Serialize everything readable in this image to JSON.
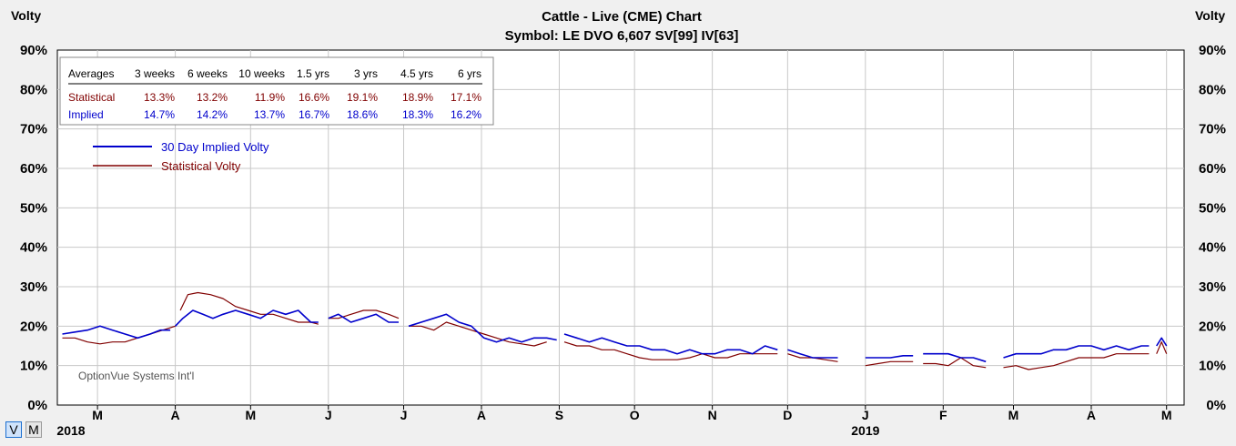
{
  "title": "Cattle - Live (CME) Chart",
  "subtitle": "Symbol: LE  DVO 6,607  SV[99]  IV[63]",
  "left_axis_title": "Volty",
  "right_axis_title": "Volty",
  "watermark": "OptionVue Systems Int'l",
  "buttons": {
    "v": "V",
    "m": "M"
  },
  "colors": {
    "implied": "#0000cc",
    "statistical": "#800000",
    "grid": "#c8c8c8",
    "plot_bg": "#ffffff"
  },
  "summary_table": {
    "headers": [
      "Averages",
      "3 weeks",
      "6 weeks",
      "10 weeks",
      "1.5 yrs",
      "3 yrs",
      "4.5 yrs",
      "6 yrs"
    ],
    "rows": [
      {
        "label": "Statistical",
        "values": [
          "13.3%",
          "13.2%",
          "11.9%",
          "16.6%",
          "19.1%",
          "18.9%",
          "17.1%"
        ]
      },
      {
        "label": "Implied",
        "values": [
          "14.7%",
          "14.2%",
          "13.7%",
          "16.7%",
          "18.6%",
          "18.3%",
          "16.2%"
        ]
      }
    ]
  },
  "chart_data": {
    "type": "line",
    "title": "Cattle - Live (CME) Chart",
    "subtitle": "Symbol: LE  DVO 6,607  SV[99]  IV[63]",
    "ylabel": "Volty",
    "ylim": [
      0,
      90
    ],
    "yticks": [
      "0%",
      "10%",
      "20%",
      "30%",
      "40%",
      "50%",
      "60%",
      "70%",
      "80%",
      "90%"
    ],
    "xlim": [
      "2018-02-13",
      "2019-05-08"
    ],
    "xticks": [
      {
        "label": "M",
        "date": "2018-03-01"
      },
      {
        "label": "A",
        "date": "2018-04-01"
      },
      {
        "label": "M",
        "date": "2018-05-01"
      },
      {
        "label": "J",
        "date": "2018-06-01"
      },
      {
        "label": "J",
        "date": "2018-07-01"
      },
      {
        "label": "A",
        "date": "2018-08-01"
      },
      {
        "label": "S",
        "date": "2018-09-01"
      },
      {
        "label": "O",
        "date": "2018-10-01"
      },
      {
        "label": "N",
        "date": "2018-11-01"
      },
      {
        "label": "D",
        "date": "2018-12-01"
      },
      {
        "label": "J",
        "date": "2019-01-01"
      },
      {
        "label": "F",
        "date": "2019-02-01"
      },
      {
        "label": "M",
        "date": "2019-03-01"
      },
      {
        "label": "A",
        "date": "2019-04-01"
      },
      {
        "label": "M",
        "date": "2019-05-01"
      }
    ],
    "year_labels": [
      {
        "label": "2018",
        "date": "2018-02-13"
      },
      {
        "label": "2019",
        "date": "2019-01-01"
      }
    ],
    "grid": true,
    "legend_position": "top-left",
    "series": [
      {
        "name": "30 Day Implied Volty",
        "color": "#0000cc",
        "segments": [
          [
            [
              "2018-02-15",
              18
            ],
            [
              "2018-02-20",
              18.5
            ],
            [
              "2018-02-25",
              19
            ],
            [
              "2018-03-02",
              20
            ],
            [
              "2018-03-07",
              19
            ],
            [
              "2018-03-12",
              18
            ],
            [
              "2018-03-17",
              17
            ],
            [
              "2018-03-22",
              18
            ],
            [
              "2018-03-26",
              19
            ],
            [
              "2018-03-30",
              19
            ]
          ],
          [
            [
              "2018-04-01",
              20
            ],
            [
              "2018-04-04",
              22
            ],
            [
              "2018-04-08",
              24
            ],
            [
              "2018-04-12",
              23
            ],
            [
              "2018-04-16",
              22
            ],
            [
              "2018-04-20",
              23
            ],
            [
              "2018-04-25",
              24
            ],
            [
              "2018-04-30",
              23
            ],
            [
              "2018-05-05",
              22
            ],
            [
              "2018-05-10",
              24
            ],
            [
              "2018-05-15",
              23
            ],
            [
              "2018-05-20",
              24
            ],
            [
              "2018-05-25",
              21
            ],
            [
              "2018-05-28",
              21
            ]
          ],
          [
            [
              "2018-06-01",
              22
            ],
            [
              "2018-06-05",
              23
            ],
            [
              "2018-06-10",
              21
            ],
            [
              "2018-06-15",
              22
            ],
            [
              "2018-06-20",
              23
            ],
            [
              "2018-06-25",
              21
            ],
            [
              "2018-06-29",
              21
            ]
          ],
          [
            [
              "2018-07-03",
              20
            ],
            [
              "2018-07-08",
              21
            ],
            [
              "2018-07-13",
              22
            ],
            [
              "2018-07-18",
              23
            ],
            [
              "2018-07-23",
              21
            ],
            [
              "2018-07-28",
              20
            ],
            [
              "2018-08-02",
              17
            ],
            [
              "2018-08-07",
              16
            ],
            [
              "2018-08-12",
              17
            ],
            [
              "2018-08-17",
              16
            ],
            [
              "2018-08-22",
              17
            ],
            [
              "2018-08-27",
              17
            ],
            [
              "2018-08-31",
              16.5
            ]
          ],
          [
            [
              "2018-09-03",
              18
            ],
            [
              "2018-09-08",
              17
            ],
            [
              "2018-09-13",
              16
            ],
            [
              "2018-09-18",
              17
            ],
            [
              "2018-09-23",
              16
            ],
            [
              "2018-09-28",
              15
            ],
            [
              "2018-10-03",
              15
            ],
            [
              "2018-10-08",
              14
            ],
            [
              "2018-10-13",
              14
            ],
            [
              "2018-10-18",
              13
            ],
            [
              "2018-10-23",
              14
            ],
            [
              "2018-10-28",
              13
            ],
            [
              "2018-11-02",
              13
            ],
            [
              "2018-11-07",
              14
            ],
            [
              "2018-11-12",
              14
            ],
            [
              "2018-11-17",
              13
            ],
            [
              "2018-11-22",
              15
            ],
            [
              "2018-11-27",
              14
            ]
          ],
          [
            [
              "2018-12-01",
              14
            ],
            [
              "2018-12-06",
              13
            ],
            [
              "2018-12-11",
              12
            ],
            [
              "2018-12-16",
              12
            ],
            [
              "2018-12-21",
              12
            ]
          ],
          [
            [
              "2019-01-01",
              12
            ],
            [
              "2019-01-06",
              12
            ],
            [
              "2019-01-11",
              12
            ],
            [
              "2019-01-16",
              12.5
            ],
            [
              "2019-01-20",
              12.5
            ]
          ],
          [
            [
              "2019-01-24",
              13
            ],
            [
              "2019-01-29",
              13
            ],
            [
              "2019-02-03",
              13
            ],
            [
              "2019-02-08",
              12
            ],
            [
              "2019-02-13",
              12
            ],
            [
              "2019-02-18",
              11
            ]
          ],
          [
            [
              "2019-02-25",
              12
            ],
            [
              "2019-03-02",
              13
            ],
            [
              "2019-03-07",
              13
            ],
            [
              "2019-03-12",
              13
            ],
            [
              "2019-03-17",
              14
            ],
            [
              "2019-03-22",
              14
            ],
            [
              "2019-03-27",
              15
            ],
            [
              "2019-04-01",
              15
            ],
            [
              "2019-04-06",
              14
            ],
            [
              "2019-04-11",
              15
            ],
            [
              "2019-04-16",
              14
            ],
            [
              "2019-04-21",
              15
            ],
            [
              "2019-04-24",
              15
            ]
          ],
          [
            [
              "2019-04-27",
              15
            ],
            [
              "2019-04-29",
              17
            ],
            [
              "2019-05-01",
              15
            ]
          ]
        ]
      },
      {
        "name": "Statistical Volty",
        "color": "#800000",
        "segments": [
          [
            [
              "2018-02-15",
              17
            ],
            [
              "2018-02-20",
              17
            ],
            [
              "2018-02-25",
              16
            ],
            [
              "2018-03-02",
              15.5
            ],
            [
              "2018-03-07",
              16
            ],
            [
              "2018-03-12",
              16
            ],
            [
              "2018-03-17",
              17
            ],
            [
              "2018-03-22",
              18
            ],
            [
              "2018-03-27",
              19
            ],
            [
              "2018-04-01",
              20
            ]
          ],
          [
            [
              "2018-04-03",
              24
            ],
            [
              "2018-04-06",
              28
            ],
            [
              "2018-04-10",
              28.5
            ],
            [
              "2018-04-15",
              28
            ],
            [
              "2018-04-20",
              27
            ],
            [
              "2018-04-25",
              25
            ],
            [
              "2018-04-30",
              24
            ],
            [
              "2018-05-05",
              23
            ],
            [
              "2018-05-10",
              23
            ],
            [
              "2018-05-15",
              22
            ],
            [
              "2018-05-20",
              21
            ],
            [
              "2018-05-25",
              21
            ],
            [
              "2018-05-28",
              20.5
            ]
          ],
          [
            [
              "2018-06-01",
              22
            ],
            [
              "2018-06-05",
              22
            ],
            [
              "2018-06-10",
              23
            ],
            [
              "2018-06-15",
              24
            ],
            [
              "2018-06-20",
              24
            ],
            [
              "2018-06-25",
              23
            ],
            [
              "2018-06-29",
              22
            ]
          ],
          [
            [
              "2018-07-03",
              20
            ],
            [
              "2018-07-08",
              20
            ],
            [
              "2018-07-13",
              19
            ],
            [
              "2018-07-18",
              21
            ],
            [
              "2018-07-23",
              20
            ],
            [
              "2018-07-28",
              19
            ],
            [
              "2018-08-02",
              18
            ],
            [
              "2018-08-07",
              17
            ],
            [
              "2018-08-12",
              16
            ],
            [
              "2018-08-17",
              15.5
            ],
            [
              "2018-08-22",
              15
            ],
            [
              "2018-08-27",
              16
            ]
          ],
          [
            [
              "2018-09-03",
              16
            ],
            [
              "2018-09-08",
              15
            ],
            [
              "2018-09-13",
              15
            ],
            [
              "2018-09-18",
              14
            ],
            [
              "2018-09-23",
              14
            ],
            [
              "2018-09-28",
              13
            ],
            [
              "2018-10-03",
              12
            ],
            [
              "2018-10-08",
              11.5
            ],
            [
              "2018-10-13",
              11.5
            ],
            [
              "2018-10-18",
              11.5
            ],
            [
              "2018-10-23",
              12
            ],
            [
              "2018-10-28",
              13
            ],
            [
              "2018-11-02",
              12
            ],
            [
              "2018-11-07",
              12
            ],
            [
              "2018-11-12",
              13
            ],
            [
              "2018-11-17",
              13
            ],
            [
              "2018-11-22",
              13
            ],
            [
              "2018-11-27",
              13
            ]
          ],
          [
            [
              "2018-12-01",
              13
            ],
            [
              "2018-12-06",
              12
            ],
            [
              "2018-12-11",
              12
            ],
            [
              "2018-12-16",
              11.5
            ],
            [
              "2018-12-21",
              11
            ]
          ],
          [
            [
              "2019-01-01",
              10
            ],
            [
              "2019-01-06",
              10.5
            ],
            [
              "2019-01-11",
              11
            ],
            [
              "2019-01-16",
              11
            ],
            [
              "2019-01-20",
              11
            ]
          ],
          [
            [
              "2019-01-24",
              10.5
            ],
            [
              "2019-01-29",
              10.5
            ],
            [
              "2019-02-03",
              10
            ],
            [
              "2019-02-08",
              12
            ],
            [
              "2019-02-13",
              10
            ],
            [
              "2019-02-18",
              9.5
            ]
          ],
          [
            [
              "2019-02-25",
              9.5
            ],
            [
              "2019-03-02",
              10
            ],
            [
              "2019-03-07",
              9
            ],
            [
              "2019-03-12",
              9.5
            ],
            [
              "2019-03-17",
              10
            ],
            [
              "2019-03-22",
              11
            ],
            [
              "2019-03-27",
              12
            ],
            [
              "2019-04-01",
              12
            ],
            [
              "2019-04-06",
              12
            ],
            [
              "2019-04-11",
              13
            ],
            [
              "2019-04-16",
              13
            ],
            [
              "2019-04-21",
              13
            ],
            [
              "2019-04-24",
              13
            ]
          ],
          [
            [
              "2019-04-27",
              13
            ],
            [
              "2019-04-29",
              16
            ],
            [
              "2019-05-01",
              13
            ]
          ]
        ]
      }
    ]
  }
}
